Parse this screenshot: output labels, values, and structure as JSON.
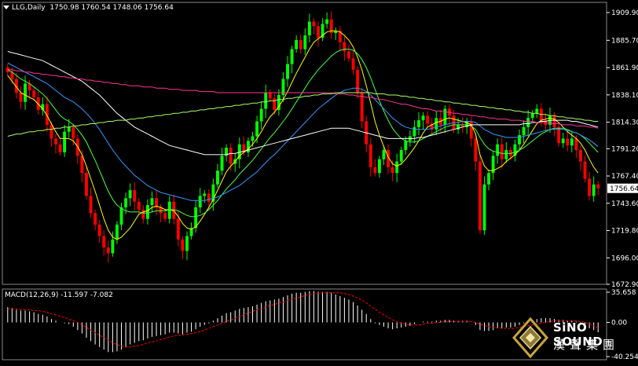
{
  "header": {
    "symbol": "LLG,Daily",
    "ohlc": "1750.98 1760.54 1748.06 1756.64"
  },
  "price_axis": {
    "ticks": [
      "1909.90",
      "1885.70",
      "1861.90",
      "1838.10",
      "1814.30",
      "1791.20",
      "1767.40",
      "1743.60",
      "1719.80",
      "1696.00",
      "1672.90"
    ],
    "tick_values": [
      1909.9,
      1885.7,
      1861.9,
      1838.1,
      1814.3,
      1791.2,
      1767.4,
      1743.6,
      1719.8,
      1696.0,
      1672.9
    ],
    "current_label": "1756.64",
    "current_value": 1756.64
  },
  "macd": {
    "label": "MACD(12,26,9) -11.597 -7.082",
    "ticks": [
      "35.658",
      "0.00",
      "-40.254"
    ],
    "tick_values": [
      35.658,
      0,
      -40.254
    ]
  },
  "logo": {
    "brand": "SiNO SOUND",
    "chinese": "漢聲集團"
  },
  "colors": {
    "background": "#000000",
    "bull": "#00ff00",
    "bear": "#ff0000",
    "axis": "#ffffff",
    "macd_hist": "#ffffff",
    "macd_signal": "#ff0000",
    "ma_yellow": "#ffff00",
    "ma_green": "#44ff44",
    "ma_blue": "#3399ff",
    "ma_white": "#ffffff",
    "ma_magenta": "#ff3399",
    "ma_lightgreen": "#aaff66"
  },
  "chart_data": {
    "type": "candlestick",
    "interval": "Daily",
    "ylim": [
      1672.9,
      1909.9
    ],
    "close": [
      1858,
      1852,
      1840,
      1832,
      1848,
      1842,
      1836,
      1825,
      1830,
      1812,
      1800,
      1795,
      1788,
      1806,
      1810,
      1800,
      1785,
      1770,
      1750,
      1735,
      1725,
      1715,
      1705,
      1700,
      1712,
      1725,
      1740,
      1748,
      1755,
      1745,
      1738,
      1730,
      1742,
      1748,
      1740,
      1735,
      1730,
      1745,
      1730,
      1712,
      1702,
      1715,
      1722,
      1740,
      1750,
      1752,
      1745,
      1760,
      1772,
      1785,
      1792,
      1778,
      1782,
      1795,
      1788,
      1798,
      1802,
      1815,
      1826,
      1840,
      1835,
      1825,
      1838,
      1852,
      1865,
      1878,
      1886,
      1878,
      1890,
      1902,
      1898,
      1888,
      1900,
      1904,
      1892,
      1894,
      1884,
      1876,
      1870,
      1860,
      1840,
      1815,
      1795,
      1775,
      1770,
      1782,
      1790,
      1775,
      1770,
      1780,
      1790,
      1798,
      1802,
      1810,
      1816,
      1820,
      1813,
      1808,
      1818,
      1812,
      1826,
      1820,
      1808,
      1812,
      1810,
      1815,
      1800,
      1780,
      1720,
      1760,
      1770,
      1785,
      1795,
      1782,
      1790,
      1785,
      1795,
      1803,
      1810,
      1818,
      1822,
      1826,
      1816,
      1812,
      1820,
      1810,
      1796,
      1800,
      1794,
      1800,
      1790,
      1780,
      1765,
      1750,
      1760,
      1756.64
    ],
    "macd": [
      18,
      17,
      15,
      14,
      14,
      13,
      12,
      10,
      9,
      7,
      4,
      2,
      0,
      -1,
      -2,
      -5,
      -9,
      -13,
      -18,
      -22,
      -26,
      -29,
      -32,
      -35,
      -35,
      -34,
      -32,
      -29,
      -26,
      -24,
      -22,
      -21,
      -19,
      -17,
      -16,
      -15,
      -14,
      -12,
      -12,
      -13,
      -14,
      -12,
      -11,
      -8,
      -5,
      -3,
      -1,
      2,
      5,
      8,
      11,
      12,
      14,
      16,
      17,
      18,
      19,
      21,
      23,
      25,
      26,
      27,
      28,
      30,
      32,
      34,
      35,
      35,
      36,
      37,
      37,
      36,
      36,
      36,
      35,
      33,
      31,
      29,
      27,
      24,
      20,
      15,
      10,
      4,
      -1,
      -3,
      -5,
      -7,
      -8,
      -7,
      -6,
      -5,
      -4,
      -2,
      0,
      1,
      1,
      1,
      2,
      2,
      3,
      3,
      2,
      2,
      2,
      2,
      0,
      -3,
      -9,
      -10,
      -10,
      -9,
      -7,
      -7,
      -6,
      -6,
      -5,
      -3,
      -1,
      1,
      3,
      4,
      5,
      5,
      5,
      4,
      3,
      3,
      2,
      2,
      1,
      -1,
      -4,
      -7,
      -9,
      -11.597
    ],
    "signal": [
      16,
      16,
      16,
      15,
      15,
      15,
      14,
      14,
      13,
      12,
      10,
      9,
      7,
      6,
      4,
      2,
      0,
      -3,
      -6,
      -9,
      -12,
      -15,
      -18,
      -21,
      -24,
      -26,
      -28,
      -29,
      -29,
      -28,
      -27,
      -26,
      -24,
      -23,
      -22,
      -20,
      -19,
      -17,
      -16,
      -15,
      -15,
      -14,
      -13,
      -12,
      -11,
      -9,
      -7,
      -5,
      -3,
      -1,
      1,
      3,
      5,
      7,
      9,
      11,
      13,
      15,
      16,
      18,
      20,
      21,
      23,
      24,
      26,
      27,
      29,
      30,
      32,
      33,
      34,
      34,
      35,
      35,
      35,
      35,
      35,
      34,
      33,
      31,
      29,
      26,
      23,
      19,
      16,
      12,
      9,
      6,
      3,
      1,
      -1,
      -2,
      -3,
      -3,
      -3,
      -2,
      -1,
      -1,
      0,
      0,
      1,
      1,
      1,
      1,
      1,
      1,
      1,
      0,
      -2,
      -4,
      -5,
      -6,
      -6,
      -7,
      -7,
      -7,
      -7,
      -6,
      -5,
      -4,
      -3,
      -2,
      -1,
      0,
      1,
      2,
      2,
      2,
      2,
      2,
      2,
      1,
      0,
      -2,
      -4,
      -7.082
    ],
    "ma_series": [
      {
        "color": "#ffff00",
        "values": [
          1855,
          1850,
          1845,
          1840,
          1838,
          1836,
          1834,
          1830,
          1826,
          1820,
          1813,
          1806,
          1800,
          1800,
          1800,
          1798,
          1793,
          1786,
          1776,
          1765,
          1754,
          1742,
          1730,
          1720,
          1714,
          1712,
          1714,
          1718,
          1722,
          1728,
          1734,
          1736,
          1737,
          1740,
          1741,
          1740,
          1738,
          1738,
          1737,
          1732,
          1726,
          1722,
          1721,
          1723,
          1728,
          1734,
          1740,
          1747,
          1755,
          1763,
          1771,
          1776,
          1780,
          1785,
          1788,
          1791,
          1795,
          1800,
          1806,
          1813,
          1819,
          1823,
          1828,
          1834,
          1841,
          1849,
          1857,
          1864,
          1871,
          1878,
          1884,
          1887,
          1890,
          1893,
          1894,
          1894,
          1893,
          1890,
          1886,
          1880,
          1871,
          1860,
          1846,
          1831,
          1815,
          1803,
          1793,
          1784,
          1778,
          1776,
          1778,
          1782,
          1787,
          1792,
          1798,
          1805,
          1810,
          1812,
          1814,
          1815,
          1817,
          1818,
          1817,
          1816,
          1815,
          1814,
          1812,
          1804,
          1786,
          1776,
          1772,
          1772,
          1774,
          1776,
          1780,
          1783,
          1786,
          1790,
          1795,
          1801,
          1807,
          1813,
          1816,
          1817,
          1818,
          1817,
          1814,
          1810,
          1806,
          1803,
          1800,
          1796,
          1790,
          1782,
          1775,
          1770
        ]
      },
      {
        "color": "#44ff44",
        "values": [
          1860,
          1858,
          1855,
          1852,
          1850,
          1848,
          1845,
          1842,
          1839,
          1835,
          1830,
          1825,
          1820,
          1817,
          1815,
          1812,
          1808,
          1803,
          1797,
          1789,
          1781,
          1772,
          1763,
          1754,
          1747,
          1742,
          1739,
          1737,
          1736,
          1736,
          1736,
          1735,
          1735,
          1736,
          1737,
          1737,
          1737,
          1738,
          1738,
          1737,
          1735,
          1733,
          1732,
          1732,
          1733,
          1735,
          1738,
          1742,
          1746,
          1751,
          1756,
          1760,
          1764,
          1769,
          1773,
          1777,
          1781,
          1786,
          1791,
          1796,
          1801,
          1805,
          1810,
          1815,
          1820,
          1826,
          1832,
          1838,
          1844,
          1850,
          1855,
          1860,
          1864,
          1868,
          1872,
          1875,
          1877,
          1878,
          1878,
          1877,
          1874,
          1869,
          1862,
          1853,
          1843,
          1833,
          1824,
          1816,
          1809,
          1804,
          1800,
          1798,
          1797,
          1797,
          1798,
          1800,
          1802,
          1804,
          1806,
          1808,
          1810,
          1811,
          1812,
          1812,
          1812,
          1812,
          1811,
          1808,
          1801,
          1795,
          1791,
          1789,
          1788,
          1787,
          1787,
          1787,
          1788,
          1790,
          1792,
          1795,
          1798,
          1801,
          1804,
          1806,
          1808,
          1809,
          1809,
          1809,
          1808,
          1806,
          1805,
          1803,
          1800,
          1796,
          1792,
          1788
        ]
      },
      {
        "color": "#3399ff",
        "values": [
          1866,
          1864,
          1862,
          1860,
          1858,
          1856,
          1854,
          1852,
          1850,
          1848,
          1845,
          1842,
          1839,
          1836,
          1834,
          1832,
          1829,
          1826,
          1822,
          1818,
          1813,
          1808,
          1802,
          1796,
          1790,
          1785,
          1780,
          1776,
          1772,
          1768,
          1765,
          1762,
          1759,
          1757,
          1755,
          1753,
          1752,
          1751,
          1750,
          1749,
          1748,
          1747,
          1746,
          1746,
          1746,
          1746,
          1747,
          1748,
          1749,
          1751,
          1753,
          1755,
          1757,
          1759,
          1762,
          1765,
          1768,
          1771,
          1775,
          1779,
          1783,
          1786,
          1790,
          1794,
          1798,
          1802,
          1806,
          1810,
          1814,
          1818,
          1822,
          1826,
          1829,
          1832,
          1835,
          1838,
          1840,
          1842,
          1843,
          1844,
          1844,
          1843,
          1841,
          1838,
          1834,
          1830,
          1826,
          1822,
          1818,
          1815,
          1812,
          1810,
          1809,
          1808,
          1808,
          1808,
          1808,
          1809,
          1810,
          1811,
          1812,
          1813,
          1814,
          1814,
          1815,
          1815,
          1815,
          1814,
          1811,
          1808,
          1806,
          1804,
          1803,
          1802,
          1801,
          1801,
          1801,
          1801,
          1802,
          1803,
          1804,
          1805,
          1806,
          1807,
          1808,
          1808,
          1808,
          1808,
          1807,
          1806,
          1805,
          1803,
          1801,
          1799,
          1796,
          1793
        ]
      },
      {
        "color": "#ffffff",
        "values": [
          1876,
          1875,
          1874,
          1873,
          1872,
          1871,
          1870,
          1869,
          1868,
          1866,
          1864,
          1862,
          1860,
          1858,
          1856,
          1854,
          1852,
          1850,
          1847,
          1844,
          1841,
          1838,
          1834,
          1830,
          1826,
          1822,
          1819,
          1816,
          1813,
          1810,
          1808,
          1806,
          1804,
          1802,
          1800,
          1798,
          1796,
          1794,
          1793,
          1792,
          1791,
          1790,
          1789,
          1788,
          1787,
          1786,
          1786,
          1786,
          1786,
          1786,
          1786,
          1787,
          1787,
          1788,
          1789,
          1790,
          1791,
          1792,
          1793,
          1794,
          1795,
          1796,
          1797,
          1798,
          1799,
          1800,
          1801,
          1802,
          1803,
          1804,
          1805,
          1806,
          1807,
          1808,
          1809,
          1809,
          1809,
          1809,
          1809,
          1808,
          1807,
          1806,
          1805,
          1804,
          1803,
          1802,
          1801,
          1800,
          1800,
          1800,
          1800,
          1800,
          1800,
          1800,
          1801,
          1801,
          1802,
          1803,
          1804,
          1805,
          1806,
          1807,
          1808,
          1809,
          1810,
          1811,
          1812,
          1812,
          1812,
          1812,
          1812,
          1812,
          1812,
          1812,
          1812,
          1812,
          1812,
          1812,
          1813,
          1813,
          1814,
          1814,
          1815,
          1815,
          1816,
          1816,
          1816,
          1816,
          1816,
          1815,
          1815,
          1814,
          1813,
          1812,
          1811,
          1810
        ]
      },
      {
        "color": "#ff3399",
        "values": [
          1860,
          1860,
          1859,
          1859,
          1858,
          1858,
          1857,
          1857,
          1856,
          1856,
          1855,
          1855,
          1854,
          1854,
          1853,
          1853,
          1852,
          1852,
          1851,
          1851,
          1850,
          1850,
          1849,
          1849,
          1848,
          1848,
          1847,
          1847,
          1846,
          1846,
          1846,
          1845,
          1845,
          1845,
          1844,
          1844,
          1844,
          1843,
          1843,
          1843,
          1842,
          1842,
          1842,
          1842,
          1841,
          1841,
          1841,
          1841,
          1840,
          1840,
          1840,
          1840,
          1840,
          1840,
          1840,
          1840,
          1840,
          1840,
          1840,
          1840,
          1840,
          1840,
          1840,
          1840,
          1840,
          1840,
          1840,
          1840,
          1840,
          1840,
          1840,
          1840,
          1840,
          1840,
          1840,
          1839,
          1839,
          1839,
          1838,
          1838,
          1837,
          1837,
          1836,
          1836,
          1835,
          1834,
          1834,
          1833,
          1832,
          1831,
          1830,
          1830,
          1829,
          1828,
          1827,
          1826,
          1826,
          1825,
          1824,
          1824,
          1823,
          1823,
          1822,
          1822,
          1821,
          1821,
          1820,
          1820,
          1819,
          1819,
          1818,
          1818,
          1817,
          1817,
          1817,
          1816,
          1816,
          1816,
          1815,
          1815,
          1815,
          1814,
          1814,
          1814,
          1813,
          1813,
          1813,
          1812,
          1812,
          1812,
          1811,
          1811,
          1811,
          1810,
          1810,
          1809
        ]
      },
      {
        "color": "#aaff66",
        "values": [
          1802,
          1803,
          1804,
          1804,
          1805,
          1806,
          1806,
          1807,
          1807,
          1808,
          1808,
          1809,
          1809,
          1810,
          1810,
          1811,
          1811,
          1812,
          1812,
          1813,
          1813,
          1814,
          1814,
          1815,
          1815,
          1816,
          1816,
          1816,
          1817,
          1817,
          1818,
          1818,
          1819,
          1819,
          1820,
          1820,
          1821,
          1821,
          1822,
          1822,
          1823,
          1823,
          1824,
          1824,
          1825,
          1825,
          1826,
          1826,
          1827,
          1827,
          1828,
          1828,
          1829,
          1829,
          1830,
          1830,
          1831,
          1831,
          1832,
          1832,
          1833,
          1833,
          1834,
          1834,
          1835,
          1835,
          1836,
          1836,
          1837,
          1837,
          1838,
          1838,
          1839,
          1839,
          1839,
          1840,
          1840,
          1840,
          1840,
          1840,
          1840,
          1840,
          1840,
          1840,
          1839,
          1839,
          1839,
          1838,
          1838,
          1838,
          1837,
          1837,
          1836,
          1836,
          1835,
          1835,
          1834,
          1834,
          1833,
          1833,
          1832,
          1832,
          1831,
          1831,
          1830,
          1830,
          1829,
          1829,
          1828,
          1828,
          1827,
          1827,
          1826,
          1826,
          1825,
          1825,
          1824,
          1824,
          1823,
          1823,
          1822,
          1822,
          1821,
          1821,
          1820,
          1820,
          1819,
          1819,
          1818,
          1818,
          1817,
          1817,
          1816,
          1816,
          1815,
          1815
        ]
      }
    ]
  }
}
